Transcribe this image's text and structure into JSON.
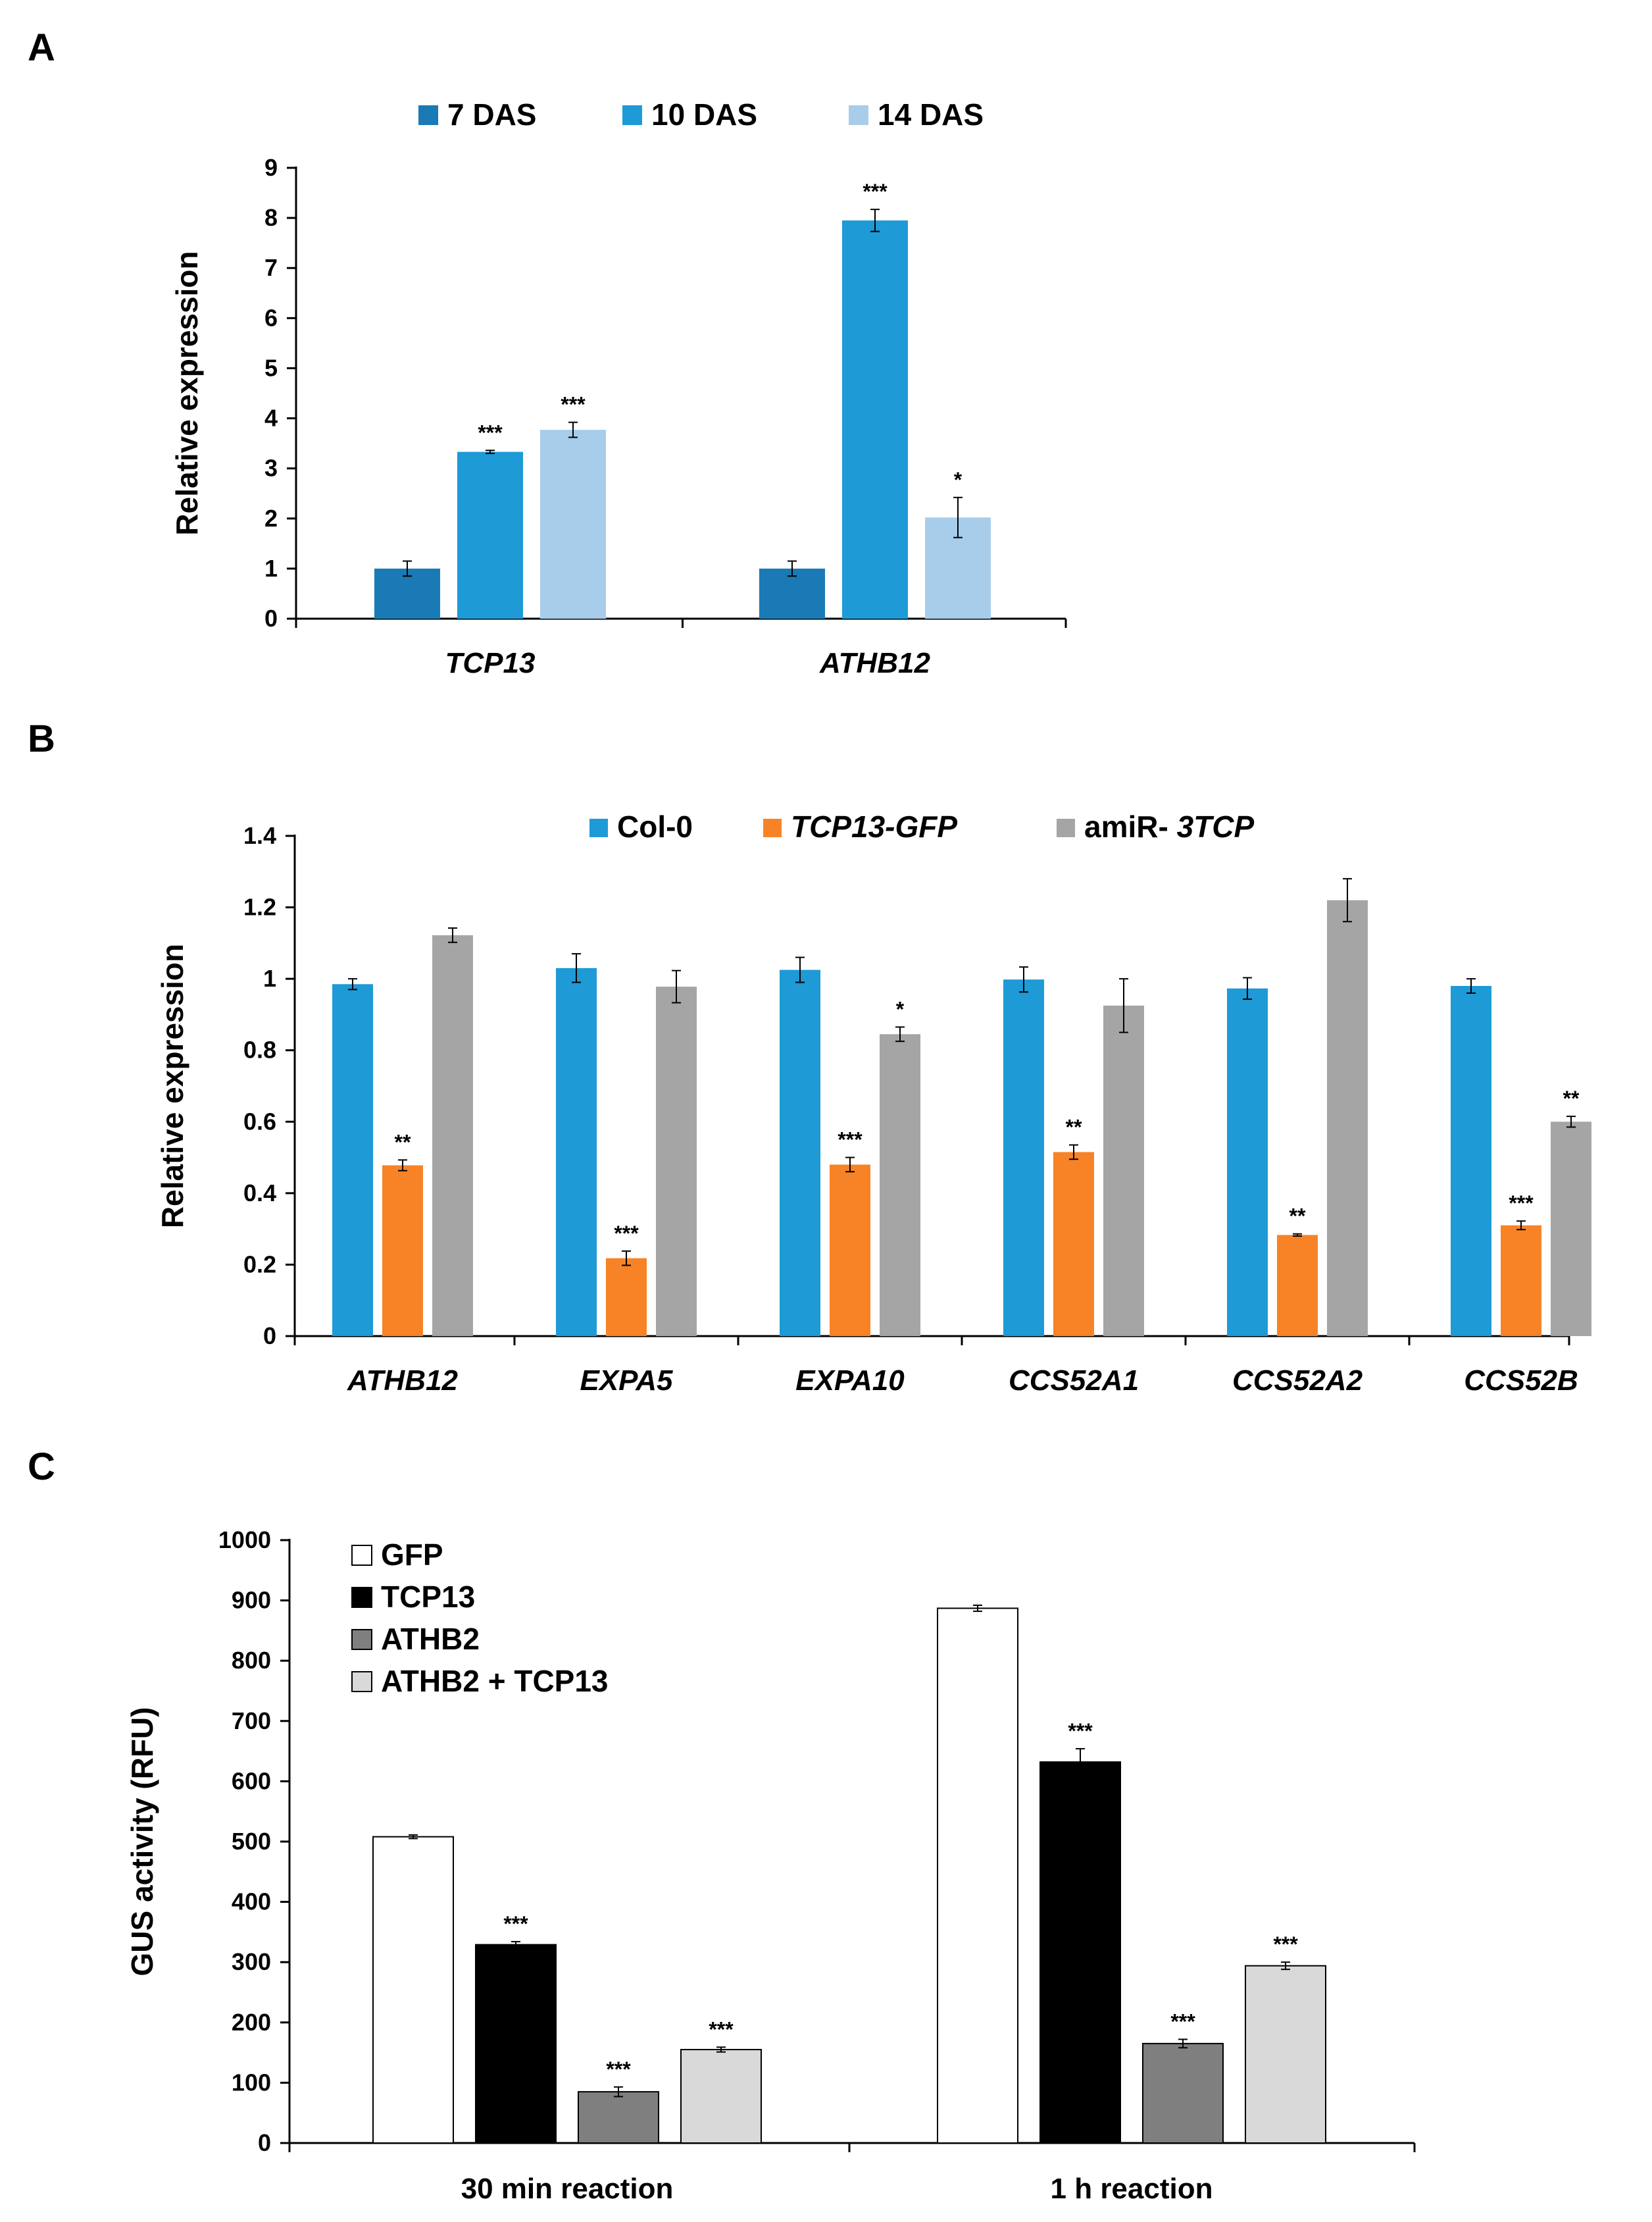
{
  "panels": [
    {
      "letter": "A",
      "chart_data": {
        "type": "bar",
        "title": "",
        "xlabel": "",
        "ylabel": "Relative expression",
        "ylim": [
          0,
          9
        ],
        "yticks": [
          0,
          1,
          2,
          3,
          4,
          5,
          6,
          7,
          8,
          9
        ],
        "ytick_labels": [
          "0",
          "1",
          "2",
          "3",
          "4",
          "5",
          "6",
          "7",
          "8",
          "9"
        ],
        "grid": false,
        "legend_position": "top",
        "categories": [
          "TCP13",
          "ATHB12"
        ],
        "categories_italic": true,
        "series": [
          {
            "name": "7 DAS",
            "color": "#1a7ab5",
            "values": [
              1.0,
              1.0
            ],
            "errors": [
              0.15,
              0.15
            ],
            "annotations": [
              "",
              ""
            ]
          },
          {
            "name": "10 DAS",
            "color": "#1e9ad6",
            "values": [
              3.33,
              7.95
            ],
            "errors": [
              0.03,
              0.22
            ],
            "annotations": [
              "***",
              "***"
            ]
          },
          {
            "name": "14 DAS",
            "color": "#a8cdeb",
            "values": [
              3.77,
              2.02
            ],
            "errors": [
              0.15,
              0.4
            ],
            "annotations": [
              "***",
              "*"
            ]
          }
        ]
      }
    },
    {
      "letter": "B",
      "chart_data": {
        "type": "bar",
        "title": "",
        "xlabel": "",
        "ylabel": "Relative expression",
        "ylim": [
          0,
          1.4
        ],
        "yticks": [
          0,
          0.2,
          0.4,
          0.6,
          0.8,
          1.0,
          1.2,
          1.4
        ],
        "ytick_labels": [
          "0",
          "0.2",
          "0.4",
          "0.6",
          "0.8",
          "1",
          "1.2",
          "1.4"
        ],
        "grid": false,
        "legend_position": "top",
        "categories": [
          "ATHB12",
          "EXPA5",
          "EXPA10",
          "CCS52A1",
          "CCS52A2",
          "CCS52B"
        ],
        "categories_italic": true,
        "series": [
          {
            "name": "Col-0",
            "name_prefix": "",
            "name_italic": "",
            "color": "#1e9ad6",
            "values": [
              0.985,
              1.03,
              1.025,
              0.998,
              0.973,
              0.98
            ],
            "errors": [
              0.015,
              0.04,
              0.035,
              0.035,
              0.03,
              0.02
            ],
            "annotations": [
              "",
              "",
              "",
              "",
              "",
              ""
            ]
          },
          {
            "name": "TCP13-GFP",
            "name_prefix": "",
            "name_italic": "TCP13-GFP",
            "color": "#f88326",
            "values": [
              0.478,
              0.218,
              0.48,
              0.515,
              0.283,
              0.31
            ],
            "errors": [
              0.015,
              0.02,
              0.02,
              0.02,
              0.003,
              0.012
            ],
            "annotations": [
              "**",
              "***",
              "***",
              "**",
              "**",
              "***"
            ]
          },
          {
            "name": "amiR- 3TCP",
            "name_prefix": "amiR- ",
            "name_italic": "3TCP",
            "color": "#a5a5a5",
            "values": [
              1.122,
              0.978,
              0.845,
              0.925,
              1.22,
              0.6
            ],
            "errors": [
              0.02,
              0.045,
              0.02,
              0.075,
              0.06,
              0.015
            ],
            "annotations": [
              "",
              "",
              "*",
              "",
              "",
              "**"
            ]
          }
        ]
      }
    },
    {
      "letter": "C",
      "chart_data": {
        "type": "bar",
        "title": "",
        "xlabel": "",
        "ylabel": "GUS activity (RFU)",
        "ylim": [
          0,
          1000
        ],
        "yticks": [
          0,
          100,
          200,
          300,
          400,
          500,
          600,
          700,
          800,
          900,
          1000
        ],
        "ytick_labels": [
          "0",
          "100",
          "200",
          "300",
          "400",
          "500",
          "600",
          "700",
          "800",
          "900",
          "1000"
        ],
        "grid": false,
        "legend_position": "top-left",
        "categories": [
          "30 min reaction",
          "1 h reaction"
        ],
        "categories_italic": false,
        "series": [
          {
            "name": "GFP",
            "color": "#ffffff",
            "values": [
              508,
              887
            ],
            "errors": [
              3,
              5
            ],
            "annotations": [
              "",
              ""
            ]
          },
          {
            "name": "TCP13",
            "color": "#000000",
            "values": [
              329,
              632
            ],
            "errors": [
              5,
              22
            ],
            "annotations": [
              "***",
              "***"
            ]
          },
          {
            "name": "ATHB2",
            "color": "#7f7f7f",
            "values": [
              85,
              165
            ],
            "errors": [
              8,
              7
            ],
            "annotations": [
              "***",
              "***"
            ]
          },
          {
            "name": "ATHB2 + TCP13",
            "color": "#d9d9d9",
            "values": [
              155,
              294
            ],
            "errors": [
              4,
              6
            ],
            "annotations": [
              "***",
              "***"
            ]
          }
        ]
      }
    }
  ]
}
